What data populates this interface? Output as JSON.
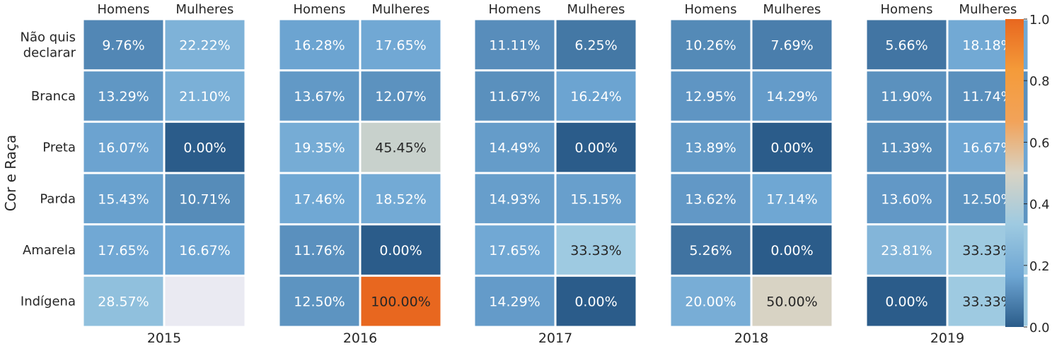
{
  "chart_data": {
    "type": "heatmap",
    "ylabel": "Cor e Raça",
    "rows": [
      "Não quis declarar",
      "Branca",
      "Preta",
      "Parda",
      "Amarela",
      "Indígena"
    ],
    "row_label_lines": [
      [
        "Não quis",
        "declarar"
      ],
      [
        "Branca"
      ],
      [
        "Preta"
      ],
      [
        "Parda"
      ],
      [
        "Amarela"
      ],
      [
        "Indígena"
      ]
    ],
    "columns": [
      "Homens",
      "Mulheres"
    ],
    "panels": [
      {
        "year": "2015",
        "values": [
          [
            0.0976,
            0.2222
          ],
          [
            0.1329,
            0.211
          ],
          [
            0.1607,
            0.0
          ],
          [
            0.1543,
            0.1071
          ],
          [
            0.1765,
            0.1667
          ],
          [
            0.2857,
            null
          ]
        ],
        "labels": [
          [
            "9.76%",
            "22.22%"
          ],
          [
            "13.29%",
            "21.10%"
          ],
          [
            "16.07%",
            "0.00%"
          ],
          [
            "15.43%",
            "10.71%"
          ],
          [
            "17.65%",
            "16.67%"
          ],
          [
            "28.57%",
            ""
          ]
        ]
      },
      {
        "year": "2016",
        "values": [
          [
            0.1628,
            0.1765
          ],
          [
            0.1367,
            0.1207
          ],
          [
            0.1935,
            0.4545
          ],
          [
            0.1746,
            0.1852
          ],
          [
            0.1176,
            0.0
          ],
          [
            0.125,
            1.0
          ]
        ],
        "labels": [
          [
            "16.28%",
            "17.65%"
          ],
          [
            "13.67%",
            "12.07%"
          ],
          [
            "19.35%",
            "45.45%"
          ],
          [
            "17.46%",
            "18.52%"
          ],
          [
            "11.76%",
            "0.00%"
          ],
          [
            "12.50%",
            "100.00%"
          ]
        ]
      },
      {
        "year": "2017",
        "values": [
          [
            0.1111,
            0.0625
          ],
          [
            0.1167,
            0.1624
          ],
          [
            0.1449,
            0.0
          ],
          [
            0.1493,
            0.1515
          ],
          [
            0.1765,
            0.3333
          ],
          [
            0.1429,
            0.0
          ]
        ],
        "labels": [
          [
            "11.11%",
            "6.25%"
          ],
          [
            "11.67%",
            "16.24%"
          ],
          [
            "14.49%",
            "0.00%"
          ],
          [
            "14.93%",
            "15.15%"
          ],
          [
            "17.65%",
            "33.33%"
          ],
          [
            "14.29%",
            "0.00%"
          ]
        ]
      },
      {
        "year": "2018",
        "values": [
          [
            0.1026,
            0.0769
          ],
          [
            0.1295,
            0.1429
          ],
          [
            0.1389,
            0.0
          ],
          [
            0.1362,
            0.1714
          ],
          [
            0.0526,
            0.0
          ],
          [
            0.2,
            0.5
          ]
        ],
        "labels": [
          [
            "10.26%",
            "7.69%"
          ],
          [
            "12.95%",
            "14.29%"
          ],
          [
            "13.89%",
            "0.00%"
          ],
          [
            "13.62%",
            "17.14%"
          ],
          [
            "5.26%",
            "0.00%"
          ],
          [
            "20.00%",
            "50.00%"
          ]
        ]
      },
      {
        "year": "2019",
        "values": [
          [
            0.0566,
            0.1818
          ],
          [
            0.119,
            0.1174
          ],
          [
            0.1139,
            0.1667
          ],
          [
            0.136,
            0.125
          ],
          [
            0.2381,
            0.3333
          ],
          [
            0.0,
            0.3333
          ]
        ],
        "labels": [
          [
            "5.66%",
            "18.18%"
          ],
          [
            "11.90%",
            "11.74%"
          ],
          [
            "11.39%",
            "16.67%"
          ],
          [
            "13.60%",
            "12.50%"
          ],
          [
            "23.81%",
            "33.33%"
          ],
          [
            "0.00%",
            "33.33%"
          ]
        ]
      }
    ],
    "colorbar": {
      "range": [
        0,
        1
      ],
      "ticks": [
        "0.0",
        "0.2",
        "0.4",
        "0.6",
        "0.8",
        "1.0"
      ],
      "colors": [
        "#2b5c8a",
        "#6ea6d3",
        "#9ecae1",
        "#d8d3c4",
        "#f2a35a",
        "#f49b3a",
        "#e8671f"
      ]
    },
    "missing_color": "#eaeaf2",
    "grid": false,
    "legend": "right"
  }
}
